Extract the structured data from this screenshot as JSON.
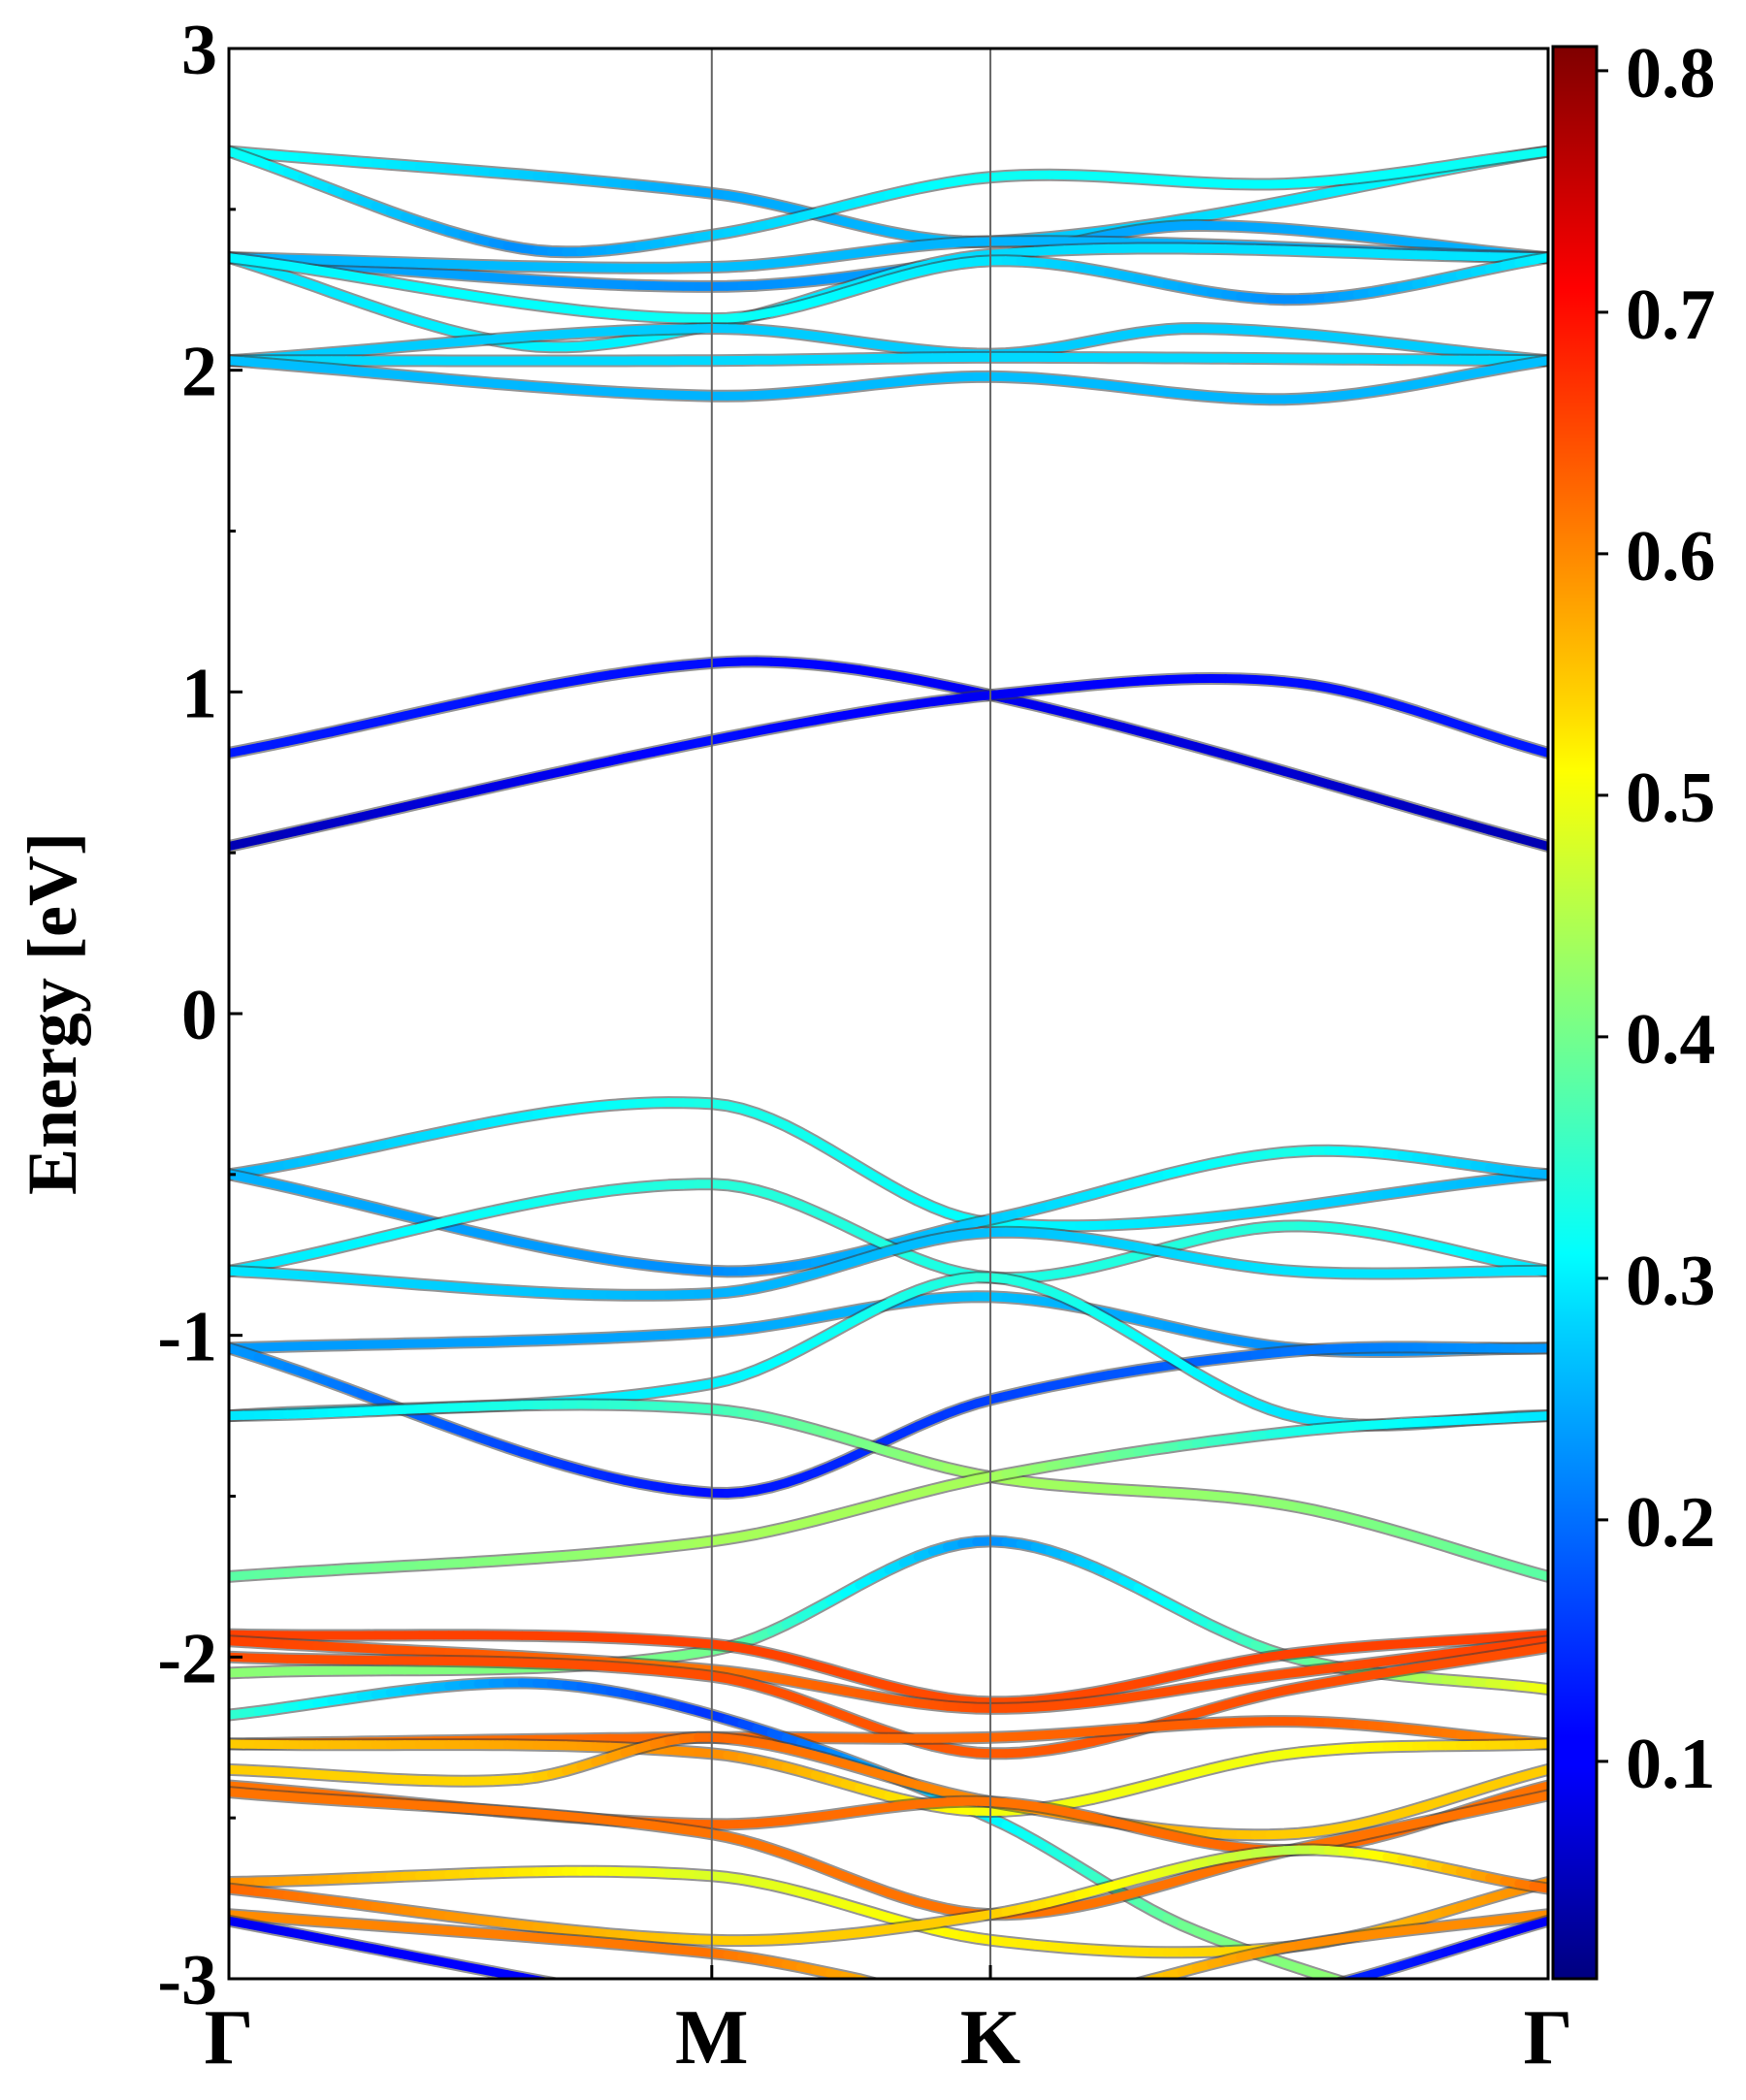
{
  "chart_data": {
    "type": "line",
    "title": "",
    "xlabel": "",
    "ylabel": "Energy [eV]",
    "ylim": [
      -3,
      3
    ],
    "yticks": [
      3,
      2,
      1,
      0,
      -1,
      -2,
      -3
    ],
    "ytick_labels": [
      "3",
      "2",
      "1",
      "0",
      "-1",
      "-2",
      "-3"
    ],
    "kpath": {
      "labels": [
        "Γ",
        "M",
        "K",
        "Γ"
      ],
      "positions": [
        0,
        1,
        1.577,
        2.732
      ]
    },
    "colorbar": {
      "colormap": "jet",
      "range": [
        0.01,
        0.81
      ],
      "ticks": [
        0.1,
        0.2,
        0.3,
        0.4,
        0.5,
        0.6,
        0.7,
        0.8
      ],
      "tick_labels": [
        "0.1",
        "0.2",
        "0.3",
        "0.4",
        "0.5",
        "0.6",
        "0.7",
        "0.8"
      ]
    },
    "grid": false,
    "series": [
      {
        "k": [
          0,
          1,
          1.577,
          2.732
        ],
        "energy": [
          2.68,
          2.55,
          2.4,
          2.68
        ],
        "weight": [
          0.32,
          0.24,
          0.26,
          0.32
        ]
      },
      {
        "k": [
          0,
          0.6,
          1,
          1.577,
          2.2,
          2.732
        ],
        "energy": [
          2.68,
          2.38,
          2.42,
          2.6,
          2.58,
          2.68
        ],
        "weight": [
          0.32,
          0.22,
          0.27,
          0.32,
          0.31,
          0.32
        ]
      },
      {
        "k": [
          0,
          1,
          1.577,
          2.0,
          2.732
        ],
        "energy": [
          2.35,
          2.26,
          2.35,
          2.45,
          2.35
        ],
        "weight": [
          0.25,
          0.22,
          0.24,
          0.24,
          0.25
        ]
      },
      {
        "k": [
          0,
          1,
          1.577,
          2.732
        ],
        "energy": [
          2.35,
          2.32,
          2.4,
          2.35
        ],
        "weight": [
          0.25,
          0.26,
          0.25,
          0.25
        ]
      },
      {
        "k": [
          0,
          0.6,
          1,
          1.577,
          2.732
        ],
        "energy": [
          2.35,
          2.08,
          2.14,
          2.36,
          2.35
        ],
        "weight": [
          0.29,
          0.3,
          0.3,
          0.28,
          0.29
        ]
      },
      {
        "k": [
          0,
          1,
          1.577,
          2.2,
          2.732
        ],
        "energy": [
          2.35,
          2.16,
          2.34,
          2.22,
          2.35
        ],
        "weight": [
          0.3,
          0.32,
          0.29,
          0.22,
          0.3
        ]
      },
      {
        "k": [
          0,
          1,
          1.577,
          2.0,
          2.732
        ],
        "energy": [
          2.03,
          2.13,
          2.05,
          2.13,
          2.03
        ],
        "weight": [
          0.27,
          0.27,
          0.27,
          0.27,
          0.27
        ]
      },
      {
        "k": [
          0,
          1,
          1.577,
          2.732
        ],
        "energy": [
          2.03,
          2.03,
          2.04,
          2.03
        ],
        "weight": [
          0.28,
          0.28,
          0.28,
          0.28
        ]
      },
      {
        "k": [
          0,
          1,
          1.577,
          2.2,
          2.732
        ],
        "energy": [
          2.03,
          1.92,
          1.98,
          1.91,
          2.03
        ],
        "weight": [
          0.26,
          0.25,
          0.26,
          0.25,
          0.26
        ]
      },
      {
        "k": [
          0,
          1,
          1.577,
          2.732
        ],
        "energy": [
          0.81,
          1.09,
          0.99,
          0.52
        ],
        "weight": [
          0.13,
          0.12,
          0.1,
          0.05
        ]
      },
      {
        "k": [
          0,
          1,
          1.577,
          2.2,
          2.732
        ],
        "energy": [
          0.52,
          0.85,
          0.99,
          1.03,
          0.81
        ],
        "weight": [
          0.05,
          0.12,
          0.1,
          0.12,
          0.13
        ]
      },
      {
        "k": [
          0,
          1,
          1.577,
          2.732
        ],
        "energy": [
          -0.5,
          -0.28,
          -0.65,
          -0.5
        ],
        "weight": [
          0.25,
          0.33,
          0.31,
          0.25
        ]
      },
      {
        "k": [
          0,
          1,
          1.577,
          2.2,
          2.732
        ],
        "energy": [
          -0.5,
          -0.8,
          -0.64,
          -0.43,
          -0.5
        ],
        "weight": [
          0.25,
          0.22,
          0.27,
          0.33,
          0.25
        ]
      },
      {
        "k": [
          0,
          1,
          1.577,
          2.2,
          2.732
        ],
        "energy": [
          -0.8,
          -0.53,
          -0.82,
          -0.66,
          -0.8
        ],
        "weight": [
          0.29,
          0.34,
          0.33,
          0.34,
          0.29
        ]
      },
      {
        "k": [
          0,
          1,
          1.577,
          2.2,
          2.732
        ],
        "energy": [
          -0.8,
          -0.87,
          -0.68,
          -0.8,
          -0.8
        ],
        "weight": [
          0.29,
          0.25,
          0.26,
          0.29,
          0.29
        ]
      },
      {
        "k": [
          0,
          1,
          1.577,
          2.2,
          2.732
        ],
        "energy": [
          -1.04,
          -0.99,
          -0.88,
          -1.04,
          -1.04
        ],
        "weight": [
          0.23,
          0.24,
          0.26,
          0.22,
          0.23
        ]
      },
      {
        "k": [
          0,
          1,
          1.577,
          2.2,
          2.732
        ],
        "energy": [
          -1.04,
          -1.49,
          -1.2,
          -1.05,
          -1.04
        ],
        "weight": [
          0.23,
          0.12,
          0.16,
          0.2,
          0.23
        ]
      },
      {
        "k": [
          0,
          1,
          1.577,
          2.2,
          2.732
        ],
        "energy": [
          -1.25,
          -1.15,
          -0.82,
          -1.25,
          -1.25
        ],
        "weight": [
          0.29,
          0.3,
          0.34,
          0.29,
          0.29
        ]
      },
      {
        "k": [
          0,
          1,
          1.577,
          2.2,
          2.732
        ],
        "energy": [
          -1.25,
          -1.23,
          -1.44,
          -1.53,
          -1.75
        ],
        "weight": [
          0.29,
          0.36,
          0.44,
          0.42,
          0.38
        ]
      },
      {
        "k": [
          0,
          1,
          1.577,
          2.2,
          2.732
        ],
        "energy": [
          -1.75,
          -1.64,
          -1.44,
          -1.3,
          -1.25
        ],
        "weight": [
          0.38,
          0.44,
          0.44,
          0.33,
          0.29
        ]
      },
      {
        "k": [
          0,
          1,
          1.577,
          2.2,
          2.732
        ],
        "energy": [
          -2.05,
          -1.98,
          -1.64,
          -2.0,
          -2.1
        ],
        "weight": [
          0.42,
          0.4,
          0.22,
          0.38,
          0.5
        ]
      },
      {
        "k": [
          0,
          1,
          1.577,
          2.2,
          2.732
        ],
        "energy": [
          -1.93,
          -1.96,
          -2.14,
          -1.99,
          -1.93
        ],
        "weight": [
          0.66,
          0.66,
          0.65,
          0.66,
          0.66
        ]
      },
      {
        "k": [
          0,
          1,
          1.577,
          2.2,
          2.732
        ],
        "energy": [
          -1.95,
          -2.04,
          -2.16,
          -2.05,
          -1.95
        ],
        "weight": [
          0.66,
          0.62,
          0.65,
          0.65,
          0.66
        ]
      },
      {
        "k": [
          0,
          1,
          1.577,
          2.2,
          2.732
        ],
        "energy": [
          -2.0,
          -2.06,
          -2.3,
          -2.1,
          -1.97
        ],
        "weight": [
          0.65,
          0.65,
          0.64,
          0.65,
          0.65
        ]
      },
      {
        "k": [
          0,
          1,
          1.577,
          2.2,
          2.732
        ],
        "energy": [
          -2.27,
          -2.25,
          -2.25,
          -2.2,
          -2.27
        ],
        "weight": [
          0.62,
          0.63,
          0.63,
          0.64,
          0.6
        ]
      },
      {
        "k": [
          0,
          0.6,
          1,
          1.577,
          2.0,
          2.732
        ],
        "energy": [
          -2.18,
          -2.08,
          -2.18,
          -2.5,
          -2.85,
          -3.2
        ],
        "weight": [
          0.35,
          0.22,
          0.15,
          0.3,
          0.4,
          0.45
        ]
      },
      {
        "k": [
          0,
          1,
          1.577,
          2.2,
          2.732
        ],
        "energy": [
          -2.27,
          -2.3,
          -2.48,
          -2.3,
          -2.27
        ],
        "weight": [
          0.55,
          0.6,
          0.5,
          0.5,
          0.55
        ]
      },
      {
        "k": [
          0,
          0.6,
          1,
          1.577,
          2.2,
          2.732
        ],
        "energy": [
          -2.35,
          -2.38,
          -2.25,
          -2.45,
          -2.55,
          -2.35
        ],
        "weight": [
          0.55,
          0.54,
          0.63,
          0.6,
          0.55,
          0.55
        ]
      },
      {
        "k": [
          0,
          1,
          1.577,
          2.2,
          2.732
        ],
        "energy": [
          -2.4,
          -2.52,
          -2.45,
          -2.6,
          -2.4
        ],
        "weight": [
          0.62,
          0.63,
          0.62,
          0.63,
          0.62
        ]
      },
      {
        "k": [
          0,
          1,
          1.577,
          2.2,
          2.732
        ],
        "energy": [
          -2.42,
          -2.55,
          -2.8,
          -2.6,
          -2.43
        ],
        "weight": [
          0.62,
          0.62,
          0.62,
          0.62,
          0.62
        ]
      },
      {
        "k": [
          0,
          1,
          1.577,
          2.2,
          2.732
        ],
        "energy": [
          -2.7,
          -2.68,
          -2.88,
          -2.9,
          -2.7
        ],
        "weight": [
          0.6,
          0.48,
          0.52,
          0.55,
          0.6
        ]
      },
      {
        "k": [
          0,
          1,
          1.577,
          2.2,
          2.732
        ],
        "energy": [
          -2.72,
          -2.88,
          -2.8,
          -2.6,
          -2.72
        ],
        "weight": [
          0.63,
          0.55,
          0.55,
          0.45,
          0.63
        ]
      },
      {
        "k": [
          0,
          1,
          1.3,
          1.577,
          2.2,
          2.732
        ],
        "energy": [
          -2.8,
          -2.92,
          -3.0,
          -3.1,
          -2.9,
          -2.8
        ],
        "weight": [
          0.6,
          0.62,
          0.58,
          0.5,
          0.6,
          0.6
        ]
      },
      {
        "k": [
          0,
          1,
          1.577,
          2.2,
          2.732
        ],
        "energy": [
          -2.82,
          -3.1,
          -3.2,
          -3.05,
          -2.82
        ],
        "weight": [
          0.1,
          0.12,
          0.3,
          0.15,
          0.1
        ]
      }
    ]
  }
}
